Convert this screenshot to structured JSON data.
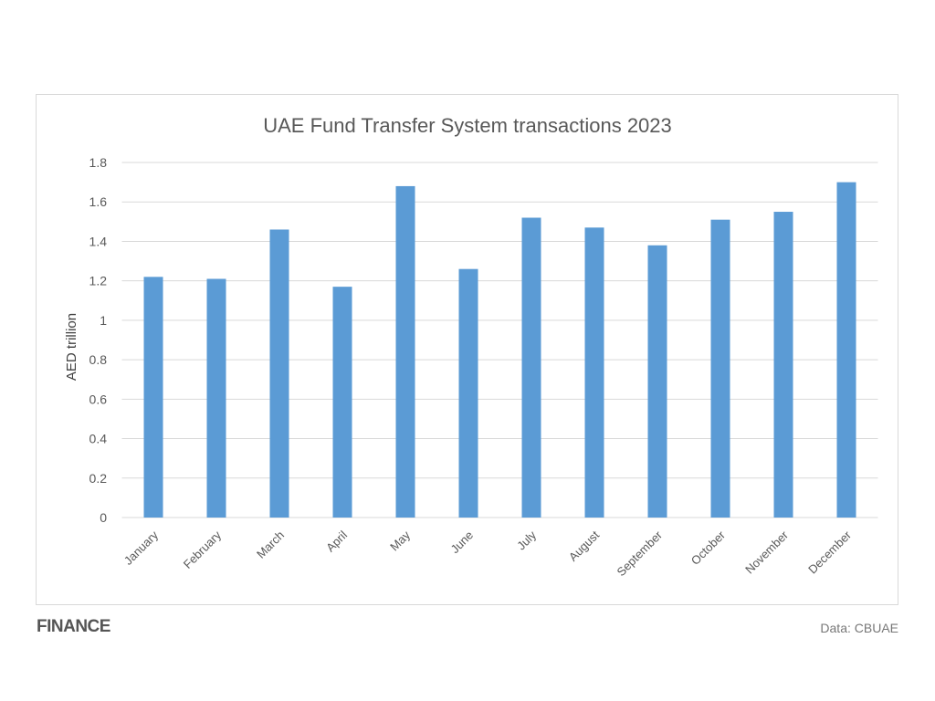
{
  "chart_data": {
    "type": "bar",
    "title": "UAE Fund Transfer System transactions 2023",
    "xlabel": "",
    "ylabel": "AED trillion",
    "categories": [
      "January",
      "February",
      "March",
      "April",
      "May",
      "June",
      "July",
      "August",
      "September",
      "October",
      "November",
      "December"
    ],
    "values": [
      1.22,
      1.21,
      1.46,
      1.17,
      1.68,
      1.26,
      1.52,
      1.47,
      1.38,
      1.51,
      1.55,
      1.7
    ],
    "ylim": [
      0,
      1.8
    ],
    "yticks": [
      "0",
      "0.2",
      "0.4",
      "0.6",
      "0.8",
      "1",
      "1.2",
      "1.4",
      "1.6",
      "1.8"
    ],
    "grid": true,
    "legend": "none",
    "bar_color": "#5b9bd5"
  },
  "footer": {
    "logo": "FINANCE",
    "source": "Data: CBUAE"
  }
}
